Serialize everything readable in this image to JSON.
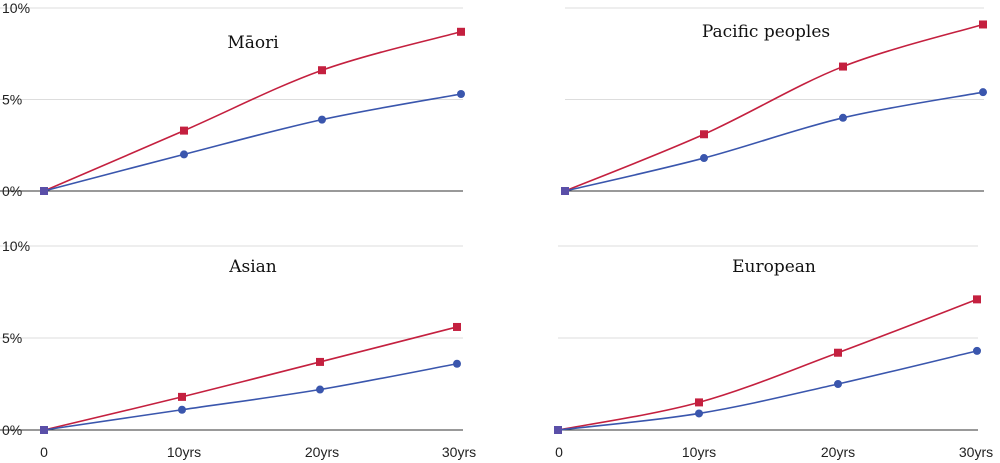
{
  "chart_data": [
    {
      "type": "line",
      "title": "Māori",
      "x": [
        "0",
        "10yrs",
        "20yrs",
        "30yrs"
      ],
      "ylim": [
        0,
        10
      ],
      "y_ticks": [
        "0%",
        "5%",
        "10%"
      ],
      "series": [
        {
          "values": [
            0,
            3.3,
            6.6,
            8.7
          ],
          "color": "#c4203f",
          "marker": "square"
        },
        {
          "values": [
            0,
            2.0,
            3.9,
            5.3
          ],
          "color": "#3a56ad",
          "marker": "circle"
        }
      ]
    },
    {
      "type": "line",
      "title": "Pacific peoples",
      "x": [
        "0",
        "10yrs",
        "20yrs",
        "30yrs"
      ],
      "ylim": [
        0,
        10
      ],
      "y_ticks": [],
      "series": [
        {
          "values": [
            0,
            3.1,
            6.8,
            9.1
          ],
          "color": "#c4203f",
          "marker": "square"
        },
        {
          "values": [
            0,
            1.8,
            4.0,
            5.4
          ],
          "color": "#3a56ad",
          "marker": "circle"
        }
      ]
    },
    {
      "type": "line",
      "title": "Asian",
      "x": [
        "0",
        "10yrs",
        "20yrs",
        "30yrs"
      ],
      "ylim": [
        0,
        10
      ],
      "y_ticks": [
        "0%",
        "5%",
        "10%"
      ],
      "series": [
        {
          "values": [
            0,
            1.8,
            3.7,
            5.6
          ],
          "color": "#c4203f",
          "marker": "square"
        },
        {
          "values": [
            0,
            1.1,
            2.2,
            3.6
          ],
          "color": "#3a56ad",
          "marker": "circle"
        }
      ]
    },
    {
      "type": "line",
      "title": "European",
      "x": [
        "0",
        "10yrs",
        "20yrs",
        "30yrs"
      ],
      "ylim": [
        0,
        10
      ],
      "y_ticks": [],
      "series": [
        {
          "values": [
            0,
            1.5,
            4.2,
            7.1
          ],
          "color": "#c4203f",
          "marker": "square"
        },
        {
          "values": [
            0,
            0.9,
            2.5,
            4.3
          ],
          "color": "#3a56ad",
          "marker": "circle"
        }
      ]
    }
  ],
  "x_tick_labels": [
    "0",
    "10yrs",
    "20yrs",
    "30yrs"
  ]
}
